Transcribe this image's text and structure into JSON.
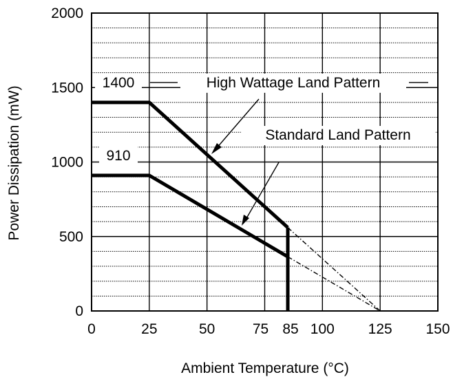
{
  "chart_data": {
    "type": "line",
    "title": "",
    "xlabel": "Ambient Temperature (°C)",
    "ylabel": "Power Dissipation (mW)",
    "xlim": [
      0,
      150
    ],
    "ylim": [
      0,
      2000
    ],
    "x_ticks": [
      0,
      25,
      50,
      75,
      85,
      100,
      125,
      150
    ],
    "y_ticks": [
      0,
      500,
      1000,
      1500,
      2000
    ],
    "grid": true,
    "series": [
      {
        "name": "High Wattage Land Pattern",
        "points": [
          [
            0,
            1400
          ],
          [
            25,
            1400
          ],
          [
            85,
            560
          ]
        ],
        "dashed_extension": [
          [
            85,
            560
          ],
          [
            125,
            0
          ]
        ]
      },
      {
        "name": "Standard Land Pattern",
        "points": [
          [
            0,
            910
          ],
          [
            25,
            910
          ],
          [
            85,
            364
          ]
        ],
        "dashed_extension": [
          [
            85,
            364
          ],
          [
            125,
            0
          ]
        ]
      }
    ],
    "cutoff_line": {
      "x": 85,
      "from": 0,
      "to": 560
    },
    "annotations": [
      {
        "text": "1400",
        "value": 1400
      },
      {
        "text": "910",
        "value": 910
      }
    ]
  }
}
